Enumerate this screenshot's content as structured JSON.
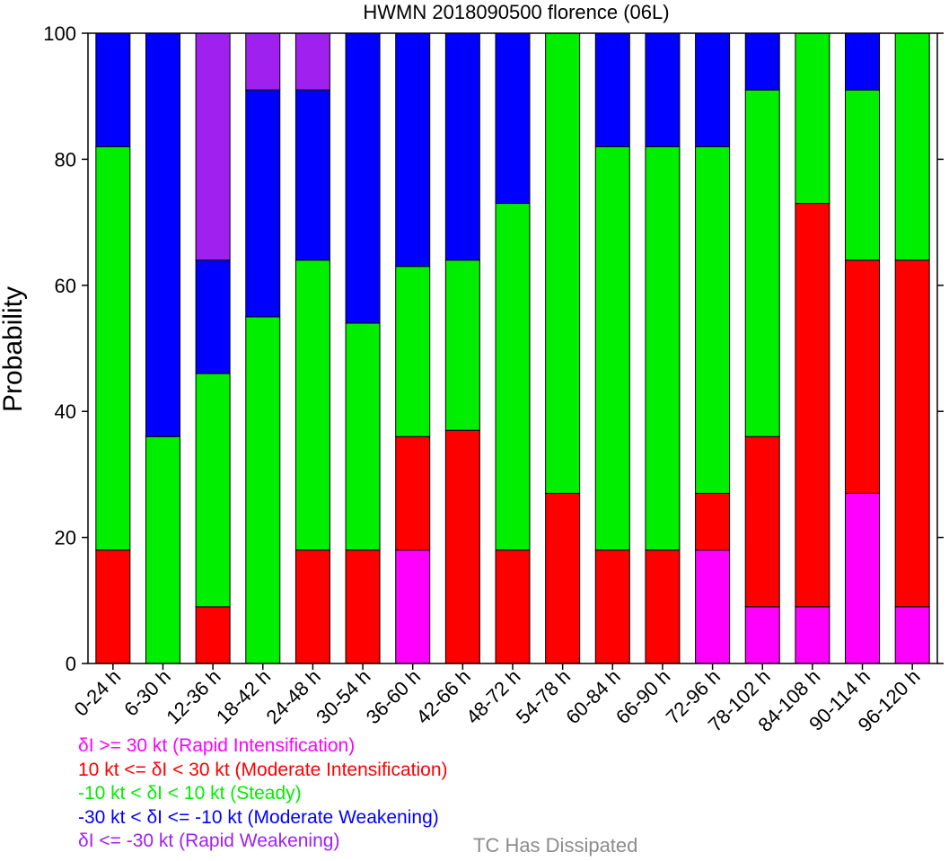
{
  "chart_data": {
    "type": "bar",
    "stacked": true,
    "title": "HWMN 2018090500 florence (06L)",
    "xlabel": "",
    "ylabel": "Probability",
    "ylim": [
      0,
      100
    ],
    "yticks": [
      "0",
      "20",
      "40",
      "60",
      "80",
      "100"
    ],
    "categories": [
      "0-24 h",
      "6-30 h",
      "12-36 h",
      "18-42 h",
      "24-48 h",
      "30-54 h",
      "36-60 h",
      "42-66 h",
      "48-72 h",
      "54-78 h",
      "60-84 h",
      "66-90 h",
      "72-96 h",
      "78-102 h",
      "84-108 h",
      "90-114 h",
      "96-120 h"
    ],
    "series": [
      {
        "key": "ri",
        "color": "#ff00ff",
        "values": [
          0,
          0,
          0,
          0,
          0,
          0,
          18,
          0,
          0,
          0,
          0,
          0,
          18,
          9,
          9,
          27,
          9
        ]
      },
      {
        "key": "mi",
        "color": "#ff0000",
        "values": [
          18,
          0,
          9,
          0,
          18,
          18,
          18,
          37,
          18,
          27,
          18,
          18,
          9,
          27,
          64,
          37,
          55
        ]
      },
      {
        "key": "st",
        "color": "#00ee00",
        "values": [
          64,
          36,
          37,
          55,
          46,
          36,
          27,
          27,
          55,
          73,
          64,
          64,
          55,
          55,
          27,
          27,
          36
        ]
      },
      {
        "key": "mw",
        "color": "#0000ff",
        "values": [
          18,
          64,
          18,
          36,
          27,
          46,
          37,
          36,
          27,
          0,
          18,
          18,
          18,
          9,
          0,
          9,
          0
        ]
      },
      {
        "key": "rw",
        "color": "#a020f0",
        "values": [
          0,
          0,
          36,
          9,
          9,
          0,
          0,
          0,
          0,
          0,
          0,
          0,
          0,
          0,
          0,
          0,
          0
        ]
      }
    ],
    "legend": [
      {
        "text": "δI >= 30 kt (Rapid Intensification)",
        "color": "#ff00ff"
      },
      {
        "text": "10 kt <= δI < 30 kt (Moderate Intensification)",
        "color": "#ff0000"
      },
      {
        "text": "-10 kt < δI < 10 kt (Steady)",
        "color": "#00ee00"
      },
      {
        "text": "-30 kt < δI <= -10 kt (Moderate Weakening)",
        "color": "#0000ff"
      },
      {
        "text": "δI <= -30 kt (Rapid Weakening)",
        "color": "#a020f0"
      }
    ],
    "dissipated_label": {
      "text": "TC Has Dissipated",
      "color": "#8c8c8c"
    },
    "legend_placement": "bottom-left",
    "grid": false
  }
}
